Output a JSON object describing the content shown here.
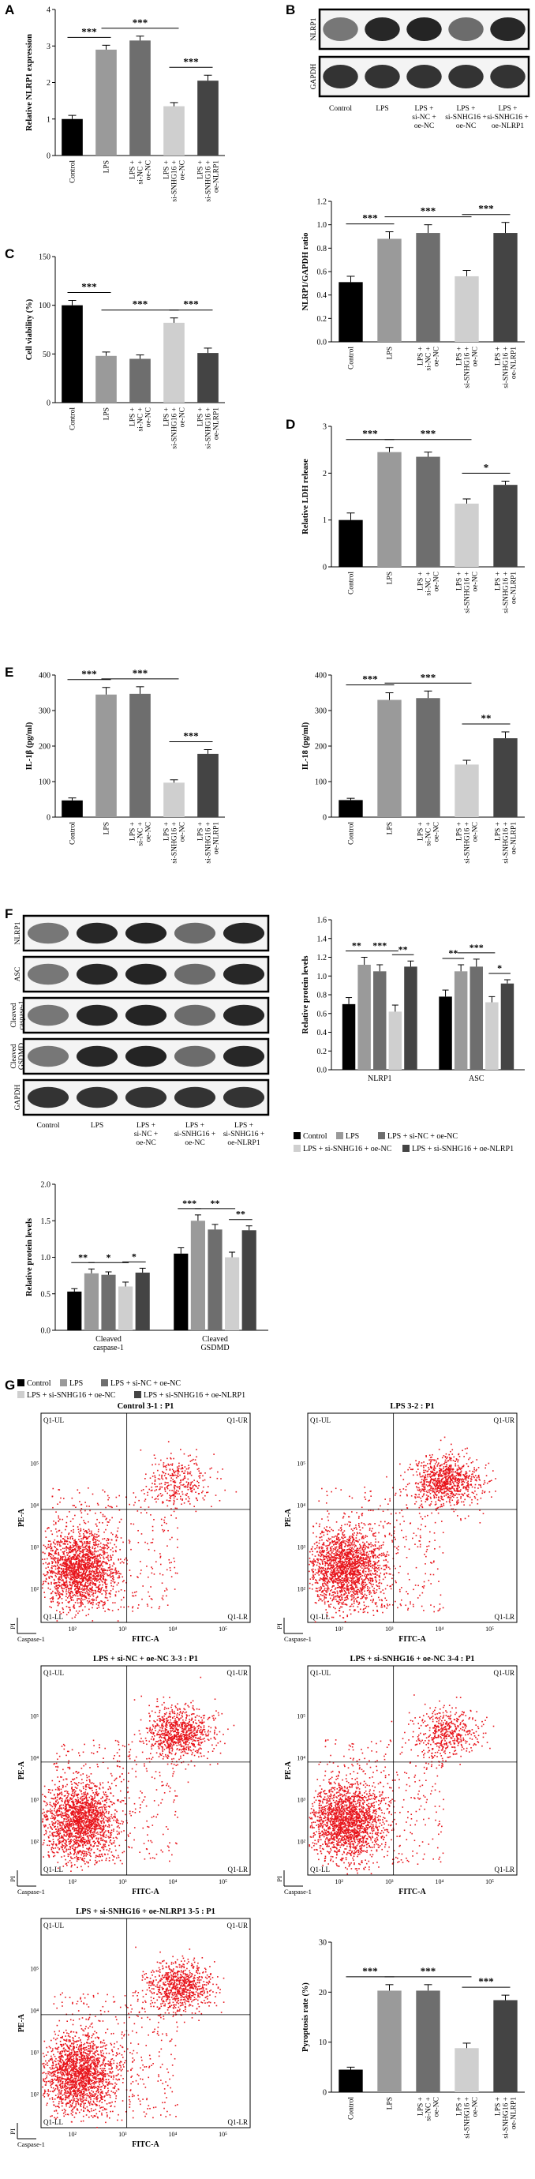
{
  "panels": [
    {
      "letter": "A"
    },
    {
      "letter": "B"
    },
    {
      "letter": "C"
    },
    {
      "letter": "D"
    },
    {
      "letter": "E"
    },
    {
      "letter": "F"
    },
    {
      "letter": "G"
    }
  ],
  "groups5": [
    "Control",
    "LPS",
    "LPS + si-NC + oe-NC",
    "LPS + si-SNHG16 + oe-NC",
    "LPS + si-SNHG16 + oe-NLRP1"
  ],
  "colors": [
    "#000000",
    "#9a9a9a",
    "#6e6e6e",
    "#cfcfcf",
    "#444444"
  ],
  "western_b": {
    "rows": [
      {
        "label": "NLRP1"
      },
      {
        "label": "GAPDH"
      }
    ],
    "lanes": [
      "Control",
      "LPS",
      "LPS + si-NC + oe-NC",
      "LPS + si-SNHG16 + oe-NC",
      "LPS + si-SNHG16 + oe-NLRP1"
    ]
  },
  "western_f": {
    "rows": [
      {
        "label": "NLRP1"
      },
      {
        "label": "ASC"
      },
      {
        "label": "Cleaved caspase-1"
      },
      {
        "label": "Cleaved GSDMD"
      },
      {
        "label": "GAPDH"
      }
    ],
    "lanes": [
      "Control",
      "LPS",
      "LPS + si-NC + oe-NC",
      "LPS + si-SNHG16 + oe-NC",
      "LPS + si-SNHG16 + oe-NLRP1"
    ]
  },
  "chart_data": [
    {
      "id": "A",
      "type": "bar",
      "categories": [
        "Control",
        "LPS",
        "LPS + si-NC + oe-NC",
        "LPS + si-SNHG16 + oe-NC",
        "LPS + si-SNHG16 + oe-NLRP1"
      ],
      "values": [
        1.0,
        2.9,
        3.15,
        1.35,
        2.05
      ],
      "errors": [
        0.1,
        0.12,
        0.12,
        0.1,
        0.15
      ],
      "ylabel": "Relative NLRP1 expression",
      "ylim": [
        0,
        4
      ],
      "yticks": [
        0,
        1,
        2,
        3,
        4
      ],
      "sig": [
        {
          "from": 0,
          "to": 1,
          "label": "***"
        },
        {
          "from": 1,
          "to": 3,
          "label": "***"
        },
        {
          "from": 3,
          "to": 4,
          "label": "***"
        }
      ]
    },
    {
      "id": "B",
      "type": "bar",
      "categories": [
        "Control",
        "LPS",
        "LPS + si-NC + oe-NC",
        "LPS + si-SNHG16 + oe-NC",
        "LPS + si-SNHG16 + oe-NLRP1"
      ],
      "values": [
        0.51,
        0.88,
        0.93,
        0.56,
        0.93
      ],
      "errors": [
        0.05,
        0.06,
        0.07,
        0.05,
        0.09
      ],
      "ylabel": "NLRP1/GAPDH ratio",
      "ylim": [
        0,
        1.2
      ],
      "yticks": [
        0.0,
        0.2,
        0.4,
        0.6,
        0.8,
        1.0,
        1.2
      ],
      "sig": [
        {
          "from": 0,
          "to": 1,
          "label": "***"
        },
        {
          "from": 1,
          "to": 3,
          "label": "***"
        },
        {
          "from": 3,
          "to": 4,
          "label": "***"
        }
      ]
    },
    {
      "id": "C",
      "type": "bar",
      "categories": [
        "Control",
        "LPS",
        "LPS + si-NC + oe-NC",
        "LPS + si-SNHG16 + oe-NC",
        "LPS + si-SNHG16 + oe-NLRP1"
      ],
      "values": [
        100,
        48,
        45,
        82,
        51
      ],
      "errors": [
        5,
        4,
        4,
        5,
        5
      ],
      "ylabel": "Cell viability (%)",
      "ylim": [
        0,
        150
      ],
      "yticks": [
        0,
        50,
        100,
        150
      ],
      "sig": [
        {
          "from": 0,
          "to": 1,
          "label": "***"
        },
        {
          "from": 1,
          "to": 3,
          "label": "***"
        },
        {
          "from": 3,
          "to": 4,
          "label": "***"
        }
      ]
    },
    {
      "id": "D",
      "type": "bar",
      "categories": [
        "Control",
        "LPS",
        "LPS + si-NC + oe-NC",
        "LPS + si-SNHG16 + oe-NC",
        "LPS + si-SNHG16 + oe-NLRP1"
      ],
      "values": [
        1.0,
        2.45,
        2.35,
        1.35,
        1.75
      ],
      "errors": [
        0.15,
        0.1,
        0.1,
        0.1,
        0.08
      ],
      "ylabel": "Relative LDH release",
      "ylim": [
        0,
        3
      ],
      "yticks": [
        0,
        1,
        2,
        3
      ],
      "sig": [
        {
          "from": 0,
          "to": 1,
          "label": "***"
        },
        {
          "from": 1,
          "to": 3,
          "label": "***"
        },
        {
          "from": 3,
          "to": 4,
          "label": "*"
        }
      ]
    },
    {
      "id": "E1",
      "type": "bar",
      "categories": [
        "Control",
        "LPS",
        "LPS + si-NC + oe-NC",
        "LPS + si-SNHG16 + oe-NC",
        "LPS + si-SNHG16 + oe-NLRP1"
      ],
      "values": [
        47,
        345,
        347,
        97,
        178
      ],
      "errors": [
        7,
        20,
        20,
        8,
        12
      ],
      "ylabel": "IL-1β (pg/ml)",
      "ylim": [
        0,
        400
      ],
      "yticks": [
        0,
        100,
        200,
        300,
        400
      ],
      "sig": [
        {
          "from": 0,
          "to": 1,
          "label": "***"
        },
        {
          "from": 1,
          "to": 3,
          "label": "***"
        },
        {
          "from": 3,
          "to": 4,
          "label": "***"
        }
      ]
    },
    {
      "id": "E2",
      "type": "bar",
      "categories": [
        "Control",
        "LPS",
        "LPS + si-NC + oe-NC",
        "LPS + si-SNHG16 + oe-NC",
        "LPS + si-SNHG16 + oe-NLRP1"
      ],
      "values": [
        48,
        330,
        335,
        148,
        222
      ],
      "errors": [
        5,
        20,
        20,
        12,
        18
      ],
      "ylabel": "IL-18 (pg/ml)",
      "ylim": [
        0,
        400
      ],
      "yticks": [
        0,
        100,
        200,
        300,
        400
      ],
      "sig": [
        {
          "from": 0,
          "to": 1,
          "label": "***"
        },
        {
          "from": 1,
          "to": 3,
          "label": "***"
        },
        {
          "from": 3,
          "to": 4,
          "label": "**"
        }
      ]
    },
    {
      "id": "F1",
      "type": "bar",
      "groups": [
        "NLRP1",
        "ASC"
      ],
      "series": [
        {
          "name": "Control",
          "values": [
            0.7,
            0.78
          ],
          "errors": [
            0.07,
            0.07
          ]
        },
        {
          "name": "LPS",
          "values": [
            1.12,
            1.05
          ],
          "errors": [
            0.08,
            0.07
          ]
        },
        {
          "name": "LPS + si-NC + oe-NC",
          "values": [
            1.05,
            1.1
          ],
          "errors": [
            0.07,
            0.08
          ]
        },
        {
          "name": "LPS + si-SNHG16 + oe-NC",
          "values": [
            0.62,
            0.72
          ],
          "errors": [
            0.07,
            0.06
          ]
        },
        {
          "name": "LPS + si-SNHG16 + oe-NLRP1",
          "values": [
            1.1,
            0.92
          ],
          "errors": [
            0.06,
            0.04
          ]
        }
      ],
      "ylabel": "Relative protein levels",
      "ylim": [
        0,
        1.6
      ],
      "yticks": [
        0.0,
        0.2,
        0.4,
        0.6,
        0.8,
        1.0,
        1.2,
        1.4,
        1.6
      ],
      "sig": [
        {
          "group": 0,
          "from": 0,
          "to": 1,
          "label": "**"
        },
        {
          "group": 0,
          "from": 1,
          "to": 3,
          "label": "***"
        },
        {
          "group": 0,
          "from": 3,
          "to": 4,
          "label": "**"
        },
        {
          "group": 1,
          "from": 0,
          "to": 1,
          "label": "**"
        },
        {
          "group": 1,
          "from": 1,
          "to": 3,
          "label": "***"
        },
        {
          "group": 1,
          "from": 3,
          "to": 4,
          "label": "*"
        }
      ]
    },
    {
      "id": "F2",
      "type": "bar",
      "groups": [
        "Cleaved caspase-1",
        "Cleaved GSDMD"
      ],
      "series": [
        {
          "name": "Control",
          "values": [
            0.53,
            1.05
          ],
          "errors": [
            0.04,
            0.08
          ]
        },
        {
          "name": "LPS",
          "values": [
            0.78,
            1.5
          ],
          "errors": [
            0.06,
            0.08
          ]
        },
        {
          "name": "LPS + si-NC + oe-NC",
          "values": [
            0.76,
            1.38
          ],
          "errors": [
            0.04,
            0.07
          ]
        },
        {
          "name": "LPS + si-SNHG16 + oe-NC",
          "values": [
            0.6,
            1.0
          ],
          "errors": [
            0.06,
            0.07
          ]
        },
        {
          "name": "LPS + si-SNHG16 + oe-NLRP1",
          "values": [
            0.79,
            1.37
          ],
          "errors": [
            0.06,
            0.06
          ]
        }
      ],
      "ylabel": "Relative protein levels",
      "ylim": [
        0,
        2.0
      ],
      "yticks": [
        0.0,
        0.5,
        1.0,
        1.5,
        2.0
      ],
      "sig": [
        {
          "group": 0,
          "from": 0,
          "to": 1,
          "label": "**"
        },
        {
          "group": 0,
          "from": 1,
          "to": 3,
          "label": "*"
        },
        {
          "group": 0,
          "from": 3,
          "to": 4,
          "label": "*"
        },
        {
          "group": 1,
          "from": 0,
          "to": 1,
          "label": "***"
        },
        {
          "group": 1,
          "from": 1,
          "to": 3,
          "label": "**"
        },
        {
          "group": 1,
          "from": 3,
          "to": 4,
          "label": "**"
        }
      ]
    },
    {
      "id": "G6",
      "type": "bar",
      "categories": [
        "Control",
        "LPS",
        "LPS + si-NC + oe-NC",
        "LPS + si-SNHG16 + oe-NC",
        "LPS + si-SNHG16 + oe-NLRP1"
      ],
      "values": [
        4.5,
        20.3,
        20.3,
        8.8,
        18.4
      ],
      "errors": [
        0.5,
        1.2,
        1.2,
        1.0,
        1.0
      ],
      "ylabel": "Pyroptosis rate (%)",
      "ylim": [
        0,
        30
      ],
      "yticks": [
        0,
        10,
        20,
        30
      ],
      "sig": [
        {
          "from": 0,
          "to": 1,
          "label": "***"
        },
        {
          "from": 1,
          "to": 3,
          "label": "***"
        },
        {
          "from": 3,
          "to": 4,
          "label": "***"
        }
      ]
    }
  ],
  "legend_f": [
    "Control",
    "LPS",
    "LPS + si-NC + oe-NC",
    "LPS + si-SNHG16 + oe-NC",
    "LPS + si-SNHG16 + oe-NLRP1"
  ],
  "flow": {
    "xlabel": "FITC-A",
    "ylabel": "PE-A",
    "pi_label": "PI",
    "casp_label": "Caspase-1",
    "quadrants": [
      "Q1-UL",
      "Q1-UR",
      "Q1-LL",
      "Q1-LR"
    ],
    "ticks": [
      "10²",
      "10³",
      "10⁴",
      "10⁵"
    ],
    "plots": [
      {
        "title": "Control 3-1 : P1",
        "ur": 0.35
      },
      {
        "title": "LPS 3-2 : P1",
        "ur": 1.0
      },
      {
        "title": "LPS + si-NC + oe-NC 3-3 : P1",
        "ur": 0.95
      },
      {
        "title": "LPS + si-SNHG16 + oe-NC 3-4 : P1",
        "ur": 0.55
      },
      {
        "title": "LPS + si-SNHG16 + oe-NLRP1 3-5 : P1",
        "ur": 0.9
      }
    ]
  }
}
